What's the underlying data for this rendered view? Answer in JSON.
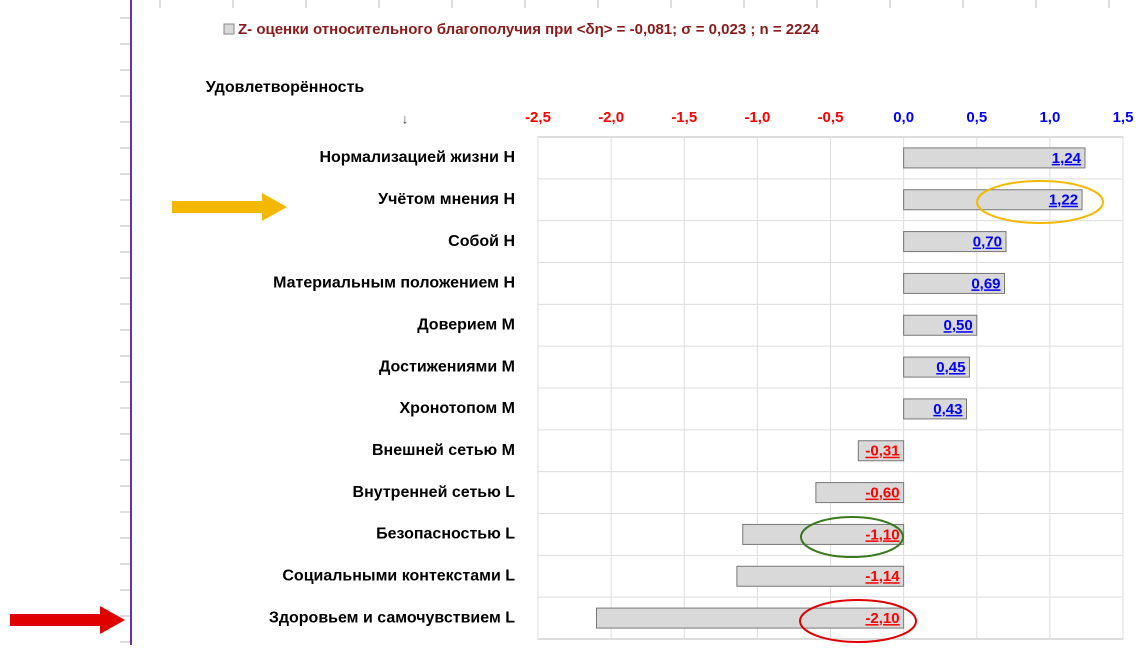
{
  "chart_data": {
    "type": "barh",
    "legend_label": "Z- оценки относительного благополучия при <δη> = -0,081; σ = 0,023 ; n = 2224",
    "legend_color": "#8b1a1a",
    "y_axis_title": "Удовлетворённость",
    "y_axis_arrow": "↓",
    "categories": [
      "Нормализацией жизни H",
      "Учётом мнения H",
      "Собой H",
      "Материальным положением H",
      "Доверием M",
      "Достижениями M",
      "Хронотопом M",
      "Внешней сетью M",
      "Внутренней сетью L",
      "Безопасностью L",
      "Социальными контекстами L",
      "Здоровьем и самочувствием L"
    ],
    "values": [
      1.24,
      1.22,
      0.7,
      0.69,
      0.5,
      0.45,
      0.43,
      -0.31,
      -0.6,
      -1.1,
      -1.14,
      -2.1
    ],
    "value_labels": [
      "1,24",
      "1,22",
      "0,70",
      "0,69",
      "0,50",
      "0,45",
      "0,43",
      "-0,31",
      "-0,60",
      "-1,10",
      "-1,14",
      "-2,10"
    ],
    "color": "#d9d9d9",
    "positive_label_color": "#0000ff",
    "negative_label_color": "#ff0000",
    "xlim": [
      -2.5,
      1.5
    ],
    "xticks": [
      {
        "value": -2.5,
        "label": "-2,5"
      },
      {
        "value": -2.0,
        "label": "-2,0"
      },
      {
        "value": -1.5,
        "label": "-1,5"
      },
      {
        "value": -1.0,
        "label": "-1,0"
      },
      {
        "value": -0.5,
        "label": "-0,5"
      },
      {
        "value": 0.0,
        "label": "0,0"
      },
      {
        "value": 0.5,
        "label": "0,5"
      },
      {
        "value": 1.0,
        "label": "1,0"
      },
      {
        "value": 1.5,
        "label": "1,5"
      }
    ],
    "grid": true
  }
}
